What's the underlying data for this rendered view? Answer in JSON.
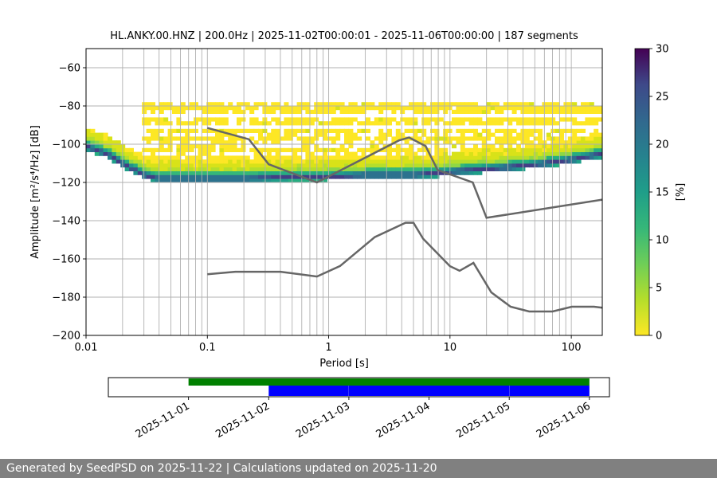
{
  "chart_data": [
    {
      "type": "heatmap",
      "title": "HL.ANKY.00.HNZ | 200.0Hz | 2025-11-02T00:00:01 - 2025-11-06T00:00:00 | 187 segments",
      "xlabel": "Period [s]",
      "ylabel": "Amplitude [m²/s⁴/Hz] [dB]",
      "x_scale": "log",
      "xlim": [
        0.01,
        180
      ],
      "ylim": [
        -200,
        -50
      ],
      "x_ticks": [
        0.01,
        0.1,
        1,
        10,
        100
      ],
      "x_tick_labels": [
        "0.01",
        "0.1",
        "1",
        "10",
        "100"
      ],
      "y_ticks": [
        -200,
        -180,
        -160,
        -140,
        -120,
        -100,
        -80,
        -60
      ],
      "y_tick_labels": [
        "−200",
        "−180",
        "−160",
        "−140",
        "−120",
        "−100",
        "−80",
        "−60"
      ],
      "grid": true,
      "colorbar": {
        "label": "[%]",
        "range": [
          0,
          30
        ],
        "ticks": [
          0,
          5,
          10,
          15,
          20,
          25,
          30
        ],
        "tick_labels": [
          "0",
          "5",
          "10",
          "15",
          "20",
          "25",
          "30"
        ],
        "colormap": "viridis"
      },
      "psd_mode": {
        "x": [
          0.01,
          0.015,
          0.02,
          0.03,
          0.04,
          0.05,
          0.07,
          0.1,
          0.2,
          0.5,
          1,
          2,
          5,
          8,
          12,
          18,
          30,
          60,
          100,
          180
        ],
        "y": [
          -101,
          -105,
          -110,
          -116,
          -118,
          -118,
          -118,
          -118,
          -118,
          -117,
          -117,
          -116,
          -116,
          -115,
          -114,
          -113,
          -112,
          -110,
          -108,
          -105
        ]
      },
      "noise_models": [
        {
          "x": [
            0.1,
            0.22,
            0.32,
            0.8,
            3.8,
            4.6,
            6.3,
            7.9,
            15.4,
            20,
            180
          ],
          "y": [
            -91.5,
            -97.4,
            -110.5,
            -120,
            -98,
            -96.5,
            -101,
            -113.5,
            -120,
            -138.5,
            -129
          ]
        },
        {
          "x": [
            0.1,
            0.17,
            0.4,
            0.8,
            1.24,
            2.4,
            4.3,
            5,
            6,
            10,
            12,
            15.6,
            21.9,
            31.6,
            45,
            70,
            101,
            154,
            180
          ],
          "y": [
            -168,
            -166.7,
            -166.7,
            -169.2,
            -163.7,
            -148.6,
            -141.1,
            -141.1,
            -149.4,
            -163.8,
            -166.2,
            -162.1,
            -177.5,
            -185,
            -187.5,
            -187.5,
            -185,
            -185,
            -185.5
          ]
        }
      ]
    },
    {
      "type": "bar",
      "x_tick_labels": [
        "2025-11-01",
        "2025-11-02",
        "2025-11-03",
        "2025-11-04",
        "2025-11-05",
        "2025-11-06"
      ],
      "xlim": [
        "2025-10-31T00:00:00",
        "2025-11-06T06:00:00"
      ],
      "coverage_colors": [
        "#008000",
        "#0000ff"
      ],
      "data_available": [
        [
          "2025-11-01T00:00:00",
          "2025-11-06T00:00:00"
        ]
      ],
      "segments": [
        [
          "2025-11-02T00:00:00",
          "2025-11-02T23:58:00"
        ],
        [
          "2025-11-03T00:01:00",
          "2025-11-04T23:58:00"
        ],
        [
          "2025-11-05T00:01:00",
          "2025-11-06T00:00:00"
        ]
      ]
    }
  ],
  "footer": "Generated by SeedPSD on 2025-11-22 | Calculations updated on 2025-11-20"
}
